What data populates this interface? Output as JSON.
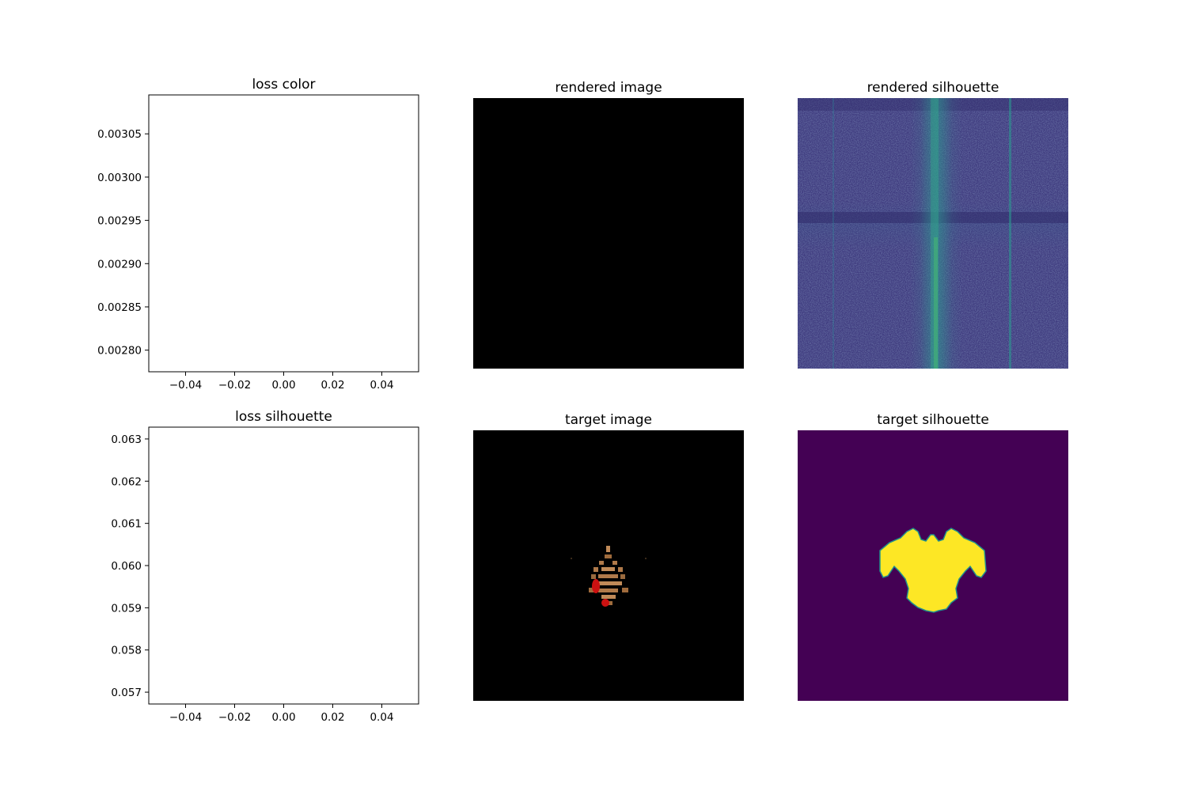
{
  "figure": {
    "panels": [
      {
        "id": "loss-color",
        "title": "loss color"
      },
      {
        "id": "rendered-image",
        "title": "rendered image"
      },
      {
        "id": "rendered-silhouette",
        "title": "rendered silhouette"
      },
      {
        "id": "loss-silhouette",
        "title": "loss silhouette"
      },
      {
        "id": "target-image",
        "title": "target image"
      },
      {
        "id": "target-silhouette",
        "title": "target silhouette"
      }
    ]
  },
  "chart_data": [
    {
      "type": "line",
      "title": "loss color",
      "xlabel": "",
      "ylabel": "",
      "xlim": [
        -0.055,
        0.055
      ],
      "ylim": [
        0.002775,
        0.003095
      ],
      "x_ticks": [
        -0.04,
        -0.02,
        0.0,
        0.02,
        0.04
      ],
      "x_tick_labels": [
        "−0.04",
        "−0.02",
        "0.00",
        "0.02",
        "0.04"
      ],
      "y_ticks": [
        0.0028,
        0.00285,
        0.0029,
        0.00295,
        0.003,
        0.00305
      ],
      "y_tick_labels": [
        "0.00280",
        "0.00285",
        "0.00290",
        "0.00295",
        "0.00300",
        "0.00305"
      ],
      "series": [],
      "grid": false
    },
    {
      "type": "line",
      "title": "loss silhouette",
      "xlabel": "",
      "ylabel": "",
      "xlim": [
        -0.055,
        0.055
      ],
      "ylim": [
        0.05672,
        0.06328
      ],
      "x_ticks": [
        -0.04,
        -0.02,
        0.0,
        0.02,
        0.04
      ],
      "x_tick_labels": [
        "−0.04",
        "−0.02",
        "0.00",
        "0.02",
        "0.04"
      ],
      "y_ticks": [
        0.057,
        0.058,
        0.059,
        0.06,
        0.061,
        0.062,
        0.063
      ],
      "y_tick_labels": [
        "0.057",
        "0.058",
        "0.059",
        "0.060",
        "0.061",
        "0.062",
        "0.063"
      ],
      "series": [],
      "grid": false
    }
  ],
  "colors": {
    "rendered_image_bg": "#000000",
    "viridis_dark": "#440154",
    "viridis_noise": "#3b4f8a",
    "viridis_teal": "#2a9d8f",
    "viridis_green": "#35b779",
    "viridis_yellow": "#fde725",
    "target_sprite_brown": "#b07a4a",
    "target_sprite_red": "#cc1111"
  }
}
